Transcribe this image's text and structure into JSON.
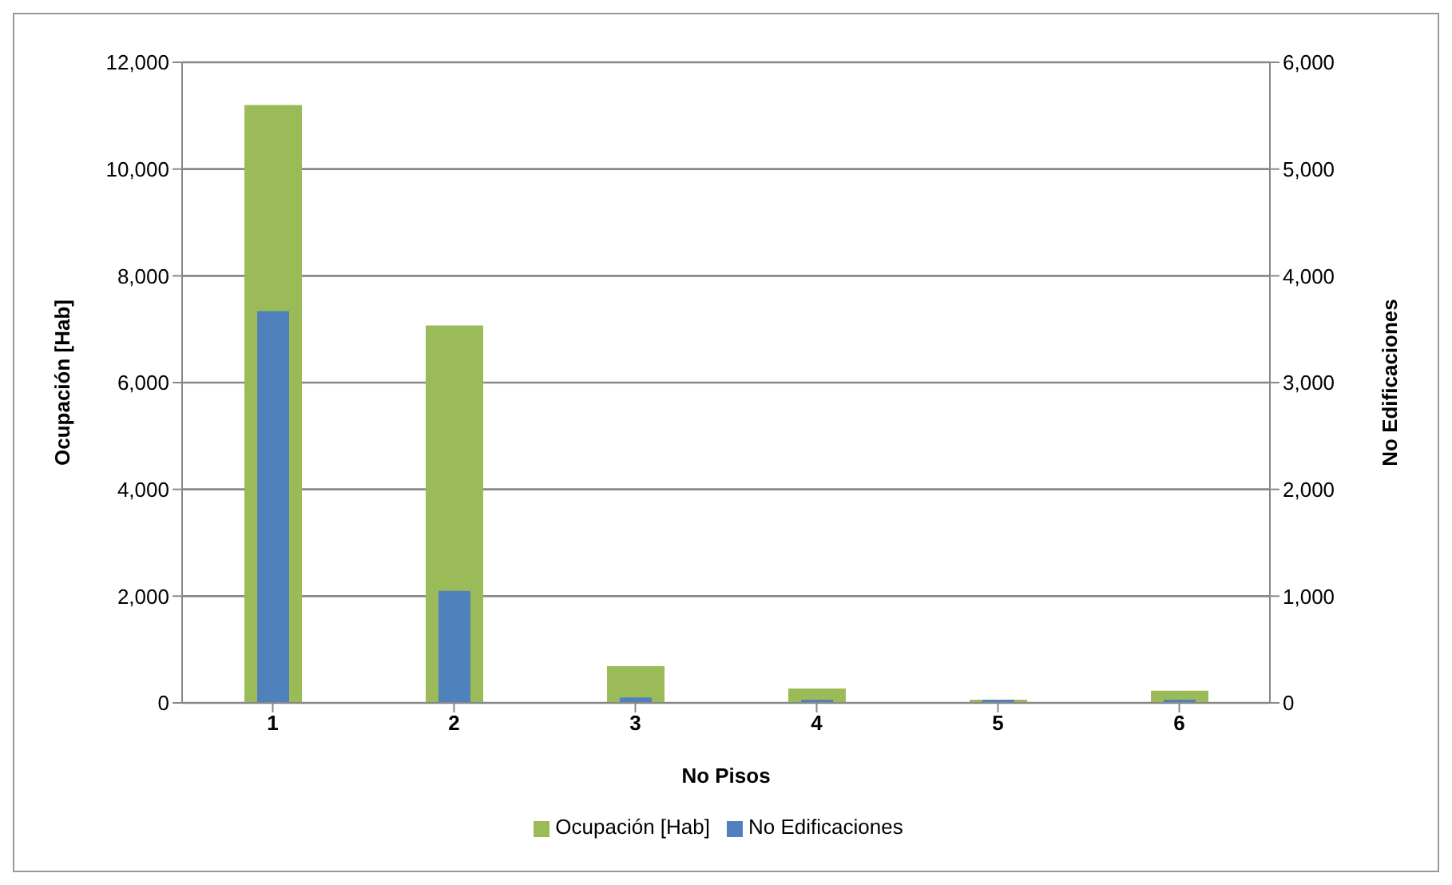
{
  "chart_data": {
    "type": "bar",
    "xlabel": "No Pisos",
    "ylabel": "Ocupación  [Hab]",
    "y2label": "No Edificaciones",
    "categories": [
      "1",
      "2",
      "3",
      "4",
      "5",
      "6"
    ],
    "series": [
      {
        "name": "Ocupación [Hab]",
        "color": "#9bbb59",
        "values": [
          11200,
          7070,
          690,
          270,
          60,
          230
        ]
      },
      {
        "name": "No Edificaciones",
        "color": "#4f81bd",
        "axis": "y2",
        "values": [
          3670,
          1050,
          50,
          30,
          30,
          30
        ]
      }
    ],
    "ylim": [
      0,
      12000
    ],
    "yticks": [
      0,
      {
        "value": 2000,
        "label": "2,000"
      },
      {
        "value": 4000,
        "label": "4,000"
      },
      {
        "value": 6000,
        "label": "6,000"
      },
      {
        "value": 8000,
        "label": "8,000"
      },
      {
        "value": 10000,
        "label": "10,000"
      },
      {
        "value": 12000,
        "label": "12,000"
      }
    ],
    "y2lim": [
      0,
      6000
    ],
    "y2ticks": [
      0,
      {
        "value": 1000,
        "label": "1,000"
      },
      {
        "value": 2000,
        "label": "2,000"
      },
      {
        "value": 3000,
        "label": "3,000"
      },
      {
        "value": 4000,
        "label": "4,000"
      },
      {
        "value": 5000,
        "label": "5,000"
      },
      {
        "value": 6000,
        "label": "6,000"
      }
    ],
    "grid": "y",
    "legend": "bottom"
  }
}
